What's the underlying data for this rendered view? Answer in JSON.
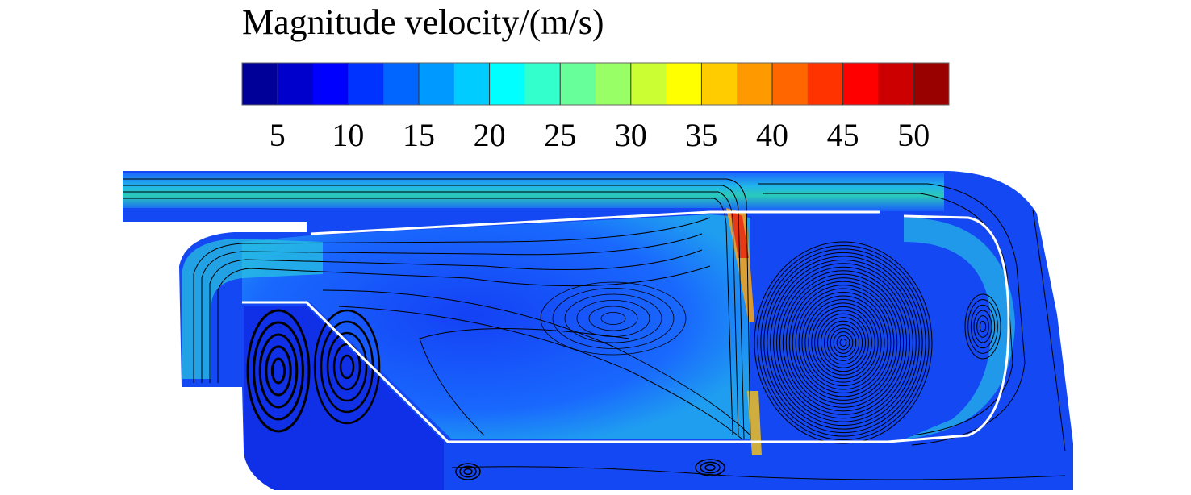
{
  "chart_data": {
    "type": "contour",
    "title": "Magnitude velocity/(m/s)",
    "zlim": [
      2.5,
      52.5
    ],
    "colorbar_ticks": [
      5,
      10,
      15,
      20,
      25,
      30,
      35,
      40,
      45,
      50
    ]
  }
}
